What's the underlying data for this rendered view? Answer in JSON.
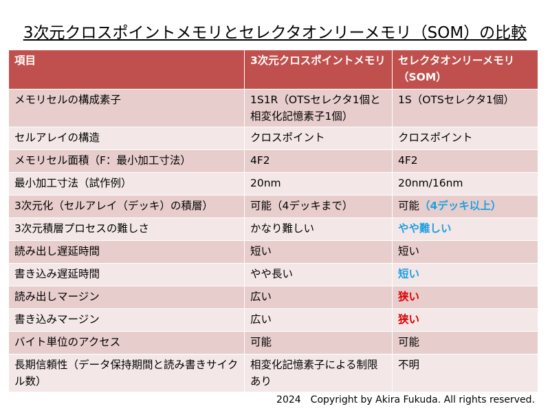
{
  "title": "3次元クロスポイントメモリとセレクタオンリーメモリ（SOM）の比較",
  "table": {
    "header": [
      "項目",
      "3次元クロスポイントメモリ",
      "セレクタオンリーメモリ（SOM）"
    ],
    "rows": [
      [
        "メモリセルの構成素子",
        "1S1R（OTSセレクタ1個と相変化記憶素子1個）",
        "1S（OTSセレクタ1個）"
      ],
      [
        "セルアレイの構造",
        "クロスポイント",
        "クロスポイント"
      ],
      [
        "メモリセル面積（F：最小加工寸法）",
        "4F2",
        "4F2"
      ],
      [
        "最小加工寸法（試作例）",
        "20nm",
        "20nm/16nm"
      ],
      [
        "3次元化（セルアレイ（デッキ）の積層）",
        "可能（4デッキまで）",
        {
          "segments": [
            {
              "text": "可能"
            },
            {
              "text": "（4デッキ以上）",
              "color": "#1f9fe0"
            }
          ]
        }
      ],
      [
        "3次元積層プロセスの難しさ",
        "かなり難しい",
        {
          "text": "やや難しい",
          "color": "#1f9fe0"
        }
      ],
      [
        "読み出し遅延時間",
        "短い",
        "短い"
      ],
      [
        "書き込み遅延時間",
        "やや長い",
        {
          "text": "短い",
          "color": "#1f9fe0"
        }
      ],
      [
        "読み出しマージン",
        "広い",
        {
          "text": "狭い",
          "color": "#e00000"
        }
      ],
      [
        "書き込みマージン",
        "広い",
        {
          "text": "狭い",
          "color": "#e00000"
        }
      ],
      [
        "バイト単位のアクセス",
        "可能",
        "可能"
      ],
      [
        "長期信頼性（データ保持期間と読み書きサイクル数）",
        "相変化記憶素子による制限あり",
        "不明"
      ]
    ]
  },
  "footer": "2024　Copyright by Akira Fukuda. All rights reserved."
}
